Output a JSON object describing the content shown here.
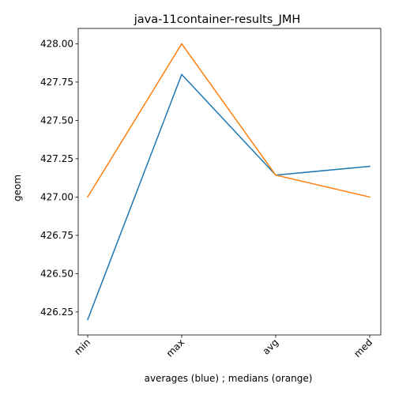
{
  "chart_data": {
    "type": "line",
    "title": "java-11container-results_JMH",
    "xlabel": "averages (blue) ; medians (orange)",
    "ylabel": "geom",
    "categories": [
      "min",
      "max",
      "avg",
      "med"
    ],
    "series": [
      {
        "color": "#1f77b4",
        "values": [
          426.2,
          427.8,
          427.143,
          427.2
        ]
      },
      {
        "color": "#ff7f0e",
        "values": [
          427.0,
          428.0,
          427.143,
          427.0
        ]
      }
    ],
    "ylim": [
      426.1,
      428.1
    ],
    "yticks": [
      426.25,
      426.5,
      426.75,
      427.0,
      427.25,
      427.5,
      427.75,
      428.0
    ],
    "ytick_labels": [
      "426.25",
      "426.50",
      "426.75",
      "427.00",
      "427.25",
      "427.50",
      "427.75",
      "428.00"
    ],
    "grid": false,
    "legend": "none"
  }
}
